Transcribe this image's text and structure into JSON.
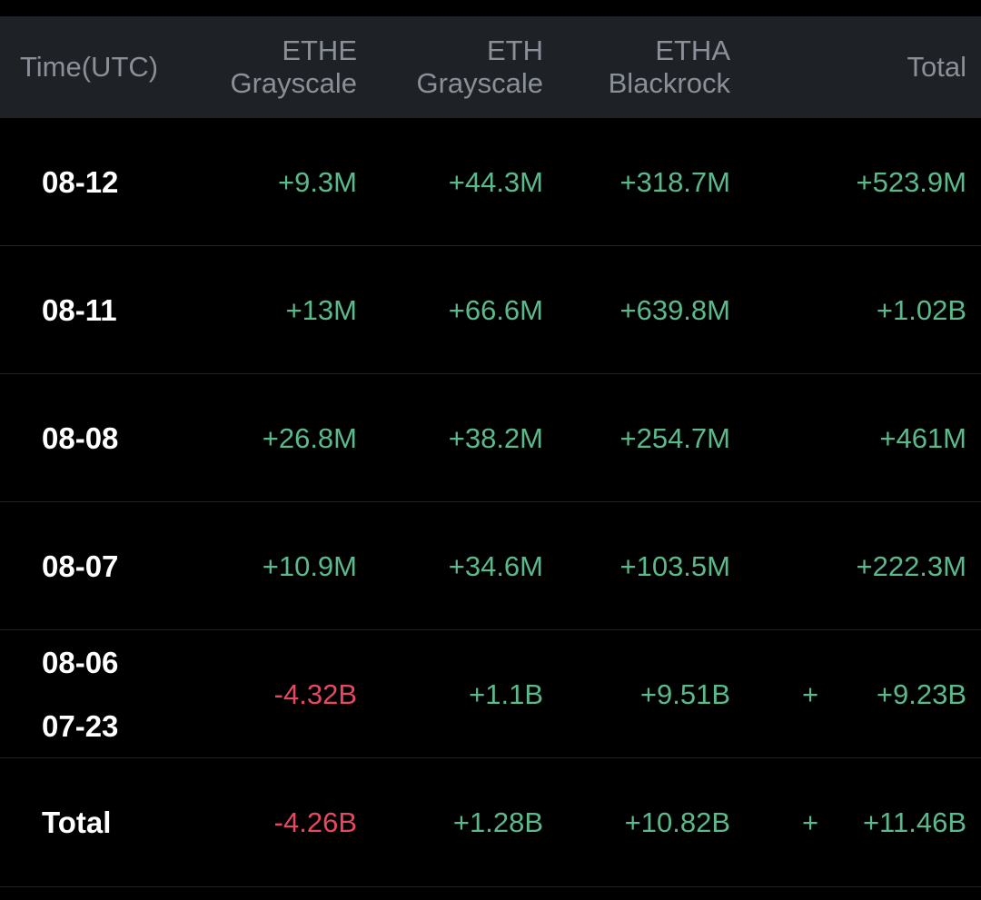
{
  "colors": {
    "header_bg": "#1e2227",
    "header_text": "#8a8f98",
    "positive": "#5bb98b",
    "negative": "#e5485f",
    "date_text": "#ffffff"
  },
  "header": {
    "time": "Time(UTC)",
    "ethe": [
      "ETHE",
      "Grayscale"
    ],
    "eth": [
      "ETH",
      "Grayscale"
    ],
    "etha": [
      "ETHA",
      "Blackrock"
    ],
    "total": "Total"
  },
  "rows": [
    {
      "date": [
        "08-12"
      ],
      "ethe": "+9.3M",
      "eth": "+44.3M",
      "etha": "+318.7M",
      "extra": "",
      "total": "+523.9M"
    },
    {
      "date": [
        "08-11"
      ],
      "ethe": "+13M",
      "eth": "+66.6M",
      "etha": "+639.8M",
      "extra": "",
      "total": "+1.02B"
    },
    {
      "date": [
        "08-08"
      ],
      "ethe": "+26.8M",
      "eth": "+38.2M",
      "etha": "+254.7M",
      "extra": "",
      "total": "+461M"
    },
    {
      "date": [
        "08-07"
      ],
      "ethe": "+10.9M",
      "eth": "+34.6M",
      "etha": "+103.5M",
      "extra": "",
      "total": "+222.3M"
    },
    {
      "date": [
        "08-06",
        "07-23"
      ],
      "ethe": "-4.32B",
      "eth": "+1.1B",
      "etha": "+9.51B",
      "extra": "+",
      "total": "+9.23B"
    },
    {
      "date": [
        "Total"
      ],
      "ethe": "-4.26B",
      "eth": "+1.28B",
      "etha": "+10.82B",
      "extra": "+",
      "total": "+11.46B"
    }
  ]
}
